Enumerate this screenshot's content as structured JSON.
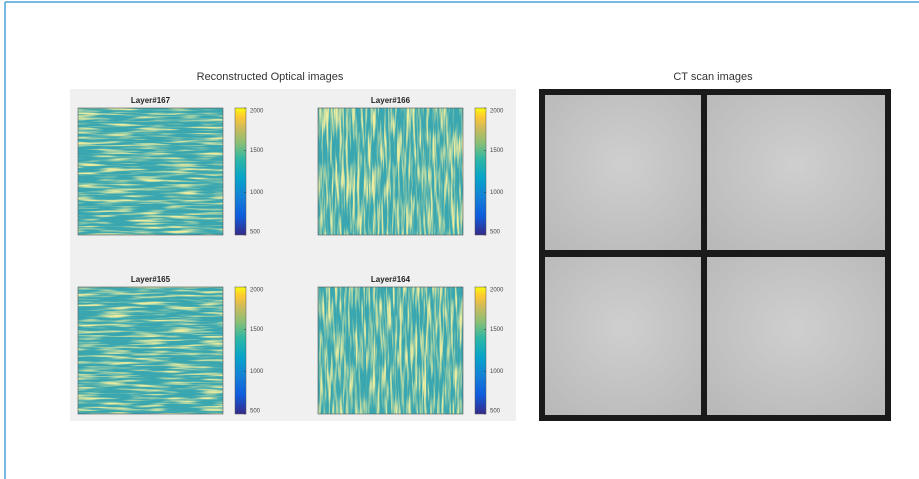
{
  "left_figure": {
    "title": "Reconstructed Optical images",
    "panels": [
      {
        "title": "Layer#167"
      },
      {
        "title": "Layer#166"
      },
      {
        "title": "Layer#165"
      },
      {
        "title": "Layer#164"
      }
    ],
    "colorbar": {
      "clim": [
        500,
        2000
      ],
      "ticks": [
        500,
        1000,
        1500,
        2000
      ]
    }
  },
  "right_figure": {
    "title": "CT scan images"
  }
}
